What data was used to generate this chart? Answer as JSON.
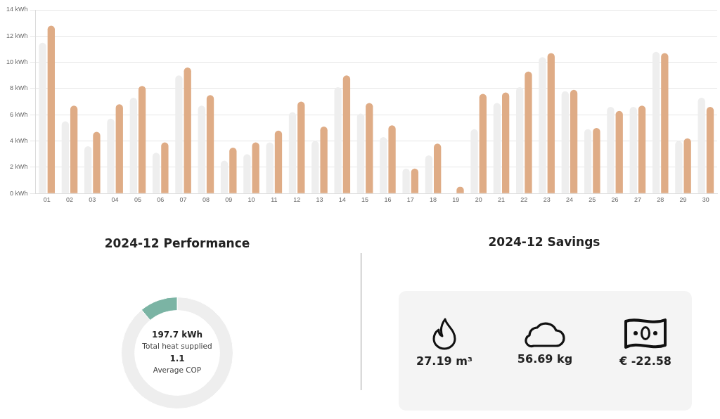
{
  "chart_data": [
    {
      "type": "bar",
      "categories": [
        "01",
        "02",
        "03",
        "04",
        "05",
        "06",
        "07",
        "08",
        "09",
        "10",
        "11",
        "12",
        "13",
        "14",
        "15",
        "16",
        "17",
        "18",
        "19",
        "20",
        "21",
        "22",
        "23",
        "24",
        "25",
        "26",
        "27",
        "28",
        "29",
        "30"
      ],
      "series": [
        {
          "color": "#eeeeee",
          "values": [
            11.5,
            5.5,
            3.6,
            5.7,
            7.3,
            3.1,
            9.0,
            6.7,
            2.5,
            3.0,
            3.9,
            6.2,
            4.0,
            8.1,
            6.1,
            4.3,
            1.9,
            2.9,
            0,
            4.9,
            6.9,
            8.1,
            10.4,
            7.8,
            4.9,
            6.6,
            6.6,
            10.8,
            4.0,
            7.3
          ]
        },
        {
          "color": "#dfac86",
          "values": [
            12.8,
            6.7,
            4.7,
            6.8,
            8.2,
            3.9,
            9.6,
            7.5,
            3.5,
            3.9,
            4.8,
            7.0,
            5.1,
            9.0,
            6.9,
            5.2,
            1.9,
            3.8,
            0.5,
            7.6,
            7.7,
            9.3,
            10.7,
            7.9,
            5.0,
            6.3,
            6.7,
            10.7,
            4.2,
            6.6
          ]
        }
      ],
      "ylim": [
        0,
        14
      ],
      "yticks": [
        {
          "value": 0,
          "label": "0 kWh"
        },
        {
          "value": 2,
          "label": "2 kWh"
        },
        {
          "value": 4,
          "label": "4 kWh"
        },
        {
          "value": 6,
          "label": "6 kWh"
        },
        {
          "value": 8,
          "label": "8 kWh"
        },
        {
          "value": 10,
          "label": "10 kWh"
        },
        {
          "value": 12,
          "label": "12 kWh"
        },
        {
          "value": 14,
          "label": "14 kWh"
        }
      ],
      "grid": "y"
    },
    {
      "type": "donut",
      "title": "2024-12 Performance",
      "categories": [
        null,
        null
      ],
      "values": [
        89,
        11
      ],
      "colors": [
        "#eeeeee",
        "#7bb4a4"
      ],
      "annotations": [
        "197.7 kWh",
        "Total heat supplied",
        "1.1",
        "Average COP"
      ]
    },
    {
      "type": "other",
      "title": "2024-12 Savings",
      "annotations": [
        "27.19 m³",
        "56.69 kg",
        "€ -22.58"
      ]
    }
  ]
}
